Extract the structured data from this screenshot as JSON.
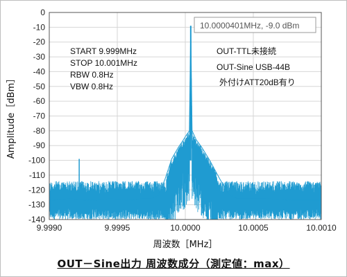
{
  "chart_data": {
    "type": "line",
    "xlabel": "周波数［MHz］",
    "ylabel": "Amplitude［dBm］",
    "xlim": [
      9.999,
      10.001
    ],
    "ylim": [
      -140,
      0
    ],
    "x_ticks": [
      "9.9990",
      "9.9995",
      "10.0000",
      "10.0005",
      "10.0010"
    ],
    "x_tick_values": [
      9.999,
      9.9995,
      10.0,
      10.0005,
      10.001
    ],
    "y_ticks": [
      0,
      -10,
      -20,
      -30,
      -40,
      -50,
      -60,
      -70,
      -80,
      -90,
      -100,
      -110,
      -120,
      -130,
      -140
    ],
    "grid": true,
    "series_color": "#1f9bd1",
    "series": [
      {
        "x": [
          9.999,
          9.99915,
          9.9993,
          9.99945,
          9.9996,
          9.99968,
          9.99975,
          9.9998,
          9.99985,
          9.9999,
          9.99995,
          9.99998,
          10.0,
          10.00003,
          10.00004,
          10.00005,
          10.00008,
          10.00012,
          10.00018,
          10.00025,
          10.00032,
          10.00038,
          10.00045,
          10.0006,
          10.0008,
          10.001
        ],
        "y": [
          -127,
          -126,
          -127,
          -126,
          -127,
          -126,
          -126,
          -124,
          -113,
          -99,
          -91,
          -87,
          -84,
          -80,
          -9,
          -80,
          -86,
          -91,
          -100,
          -112,
          -123,
          -126,
          -126,
          -126,
          -127,
          -127
        ],
        "noise_band": [
          -140,
          -114
        ]
      }
    ],
    "spurs": [
      {
        "x": 9.99922,
        "y": -99
      }
    ],
    "peak_callout": "10.0000401MHz, -9.0 dBm",
    "settings": [
      "START  9.999MHz",
      "STOP  10.001MHz",
      "RBW 0.8Hz",
      "VBW 0.8Hz"
    ],
    "annotations": [
      "OUT-TTL未接続",
      "OUT-Sine USB-44B",
      "外付けATT20dB有り"
    ],
    "caption": "OUT－Sine出力 周波数成分（測定値：max）"
  }
}
